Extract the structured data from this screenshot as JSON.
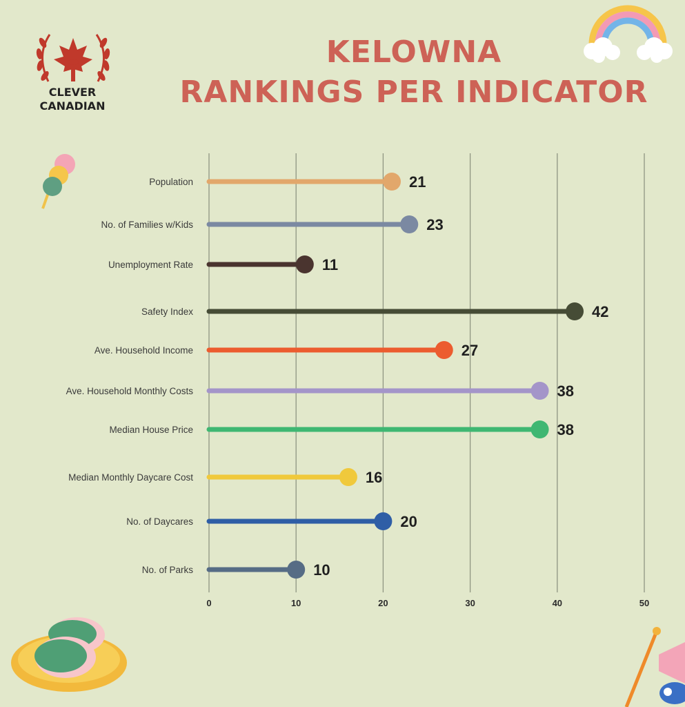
{
  "header": {
    "title_line1": "KELOWNA",
    "title_line2": "RANKINGS PER INDICATOR"
  },
  "logo": {
    "name_line1": "CLEVER",
    "name_line2": "CANADIAN",
    "icon": "maple-leaf-tower-laurel-icon"
  },
  "decorations": [
    "rainbow-clouds-icon",
    "dango-icon",
    "sakura-mochi-plate-icon",
    "koinobori-icon"
  ],
  "colors": {
    "background": "#e2e8cb",
    "title": "#cd6256",
    "gridline": "#8f9582"
  },
  "chart_data": {
    "type": "lollipop-bar",
    "title": "KELOWNA RANKINGS PER INDICATOR",
    "orientation": "horizontal",
    "xlim": [
      0,
      50
    ],
    "x_ticks": [
      0,
      10,
      20,
      30,
      40,
      50
    ],
    "grid": true,
    "categories": [
      "Population",
      "No. of Families w/Kids",
      "Unemployment Rate",
      "Safety Index",
      "Ave. Household Income",
      "Ave. Household Monthly Costs",
      "Median House Price",
      "Median Monthly Daycare Cost",
      "No. of Daycares",
      "No. of Parks"
    ],
    "values": [
      21,
      23,
      11,
      42,
      27,
      38,
      38,
      16,
      20,
      10
    ],
    "colors": [
      "#e2a76b",
      "#7b89a2",
      "#4a342f",
      "#464c36",
      "#ec5c2f",
      "#a495c9",
      "#3fb772",
      "#f0c93c",
      "#2f5ea6",
      "#566c85"
    ]
  }
}
